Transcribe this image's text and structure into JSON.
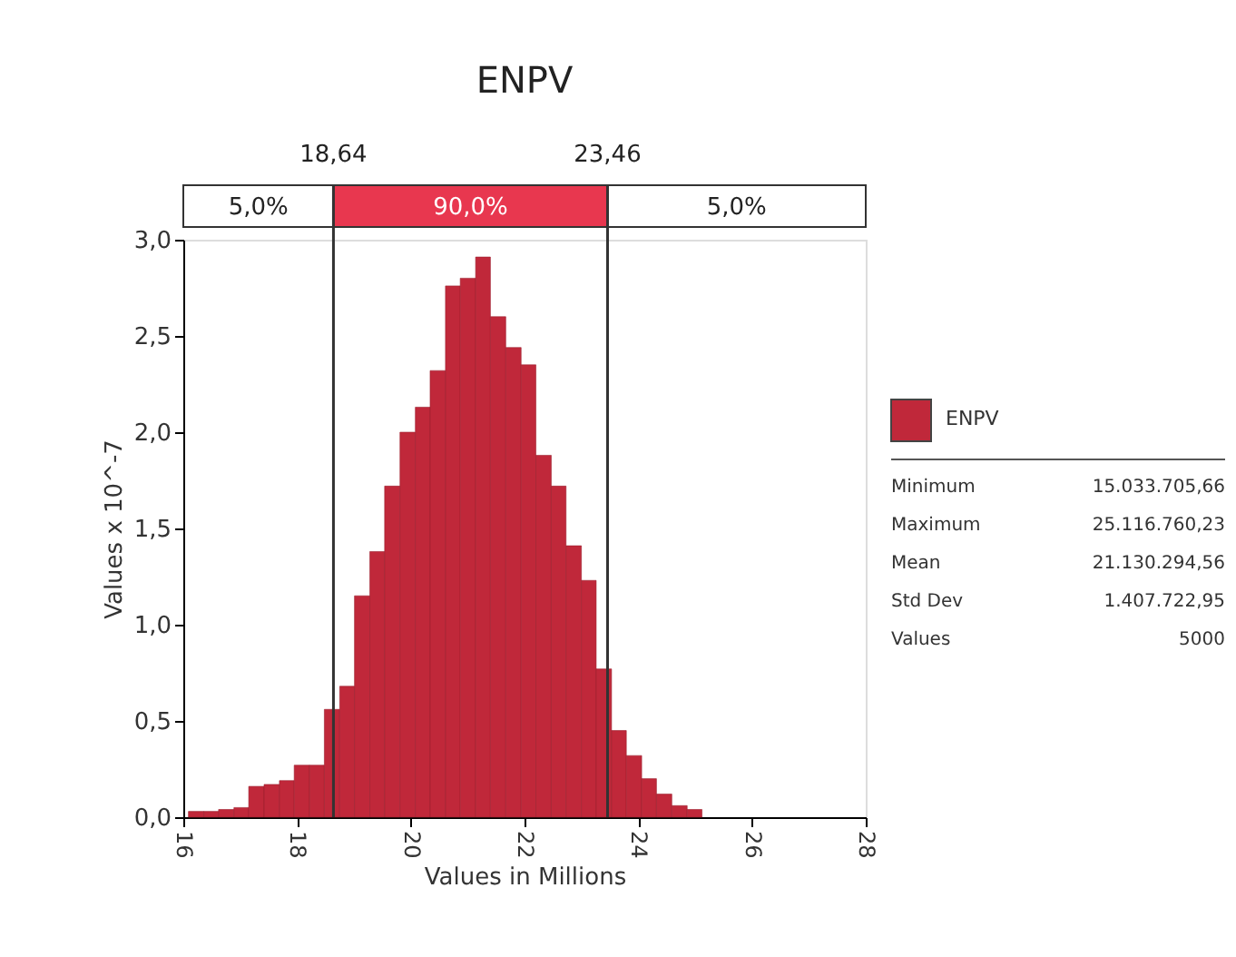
{
  "chart_data": {
    "type": "histogram",
    "title": "ENPV",
    "xlabel": "Values in Millions",
    "ylabel": "Values x 10^-7",
    "bins": [
      16.09,
      16.36,
      16.62,
      16.89,
      17.15,
      17.42,
      17.69,
      17.95,
      18.22,
      18.48,
      18.75,
      19.01,
      19.28,
      19.54,
      19.81,
      20.08,
      20.34,
      20.61,
      20.87,
      21.14,
      21.4,
      21.67,
      21.94,
      22.2,
      22.47,
      22.73,
      23.0,
      23.26,
      23.53,
      23.79,
      24.06,
      24.32,
      24.59,
      24.86,
      25.12
    ],
    "series": [
      {
        "name": "ENPV",
        "color": "#c0283a",
        "values": [
          0.03,
          0.03,
          0.04,
          0.05,
          0.16,
          0.17,
          0.19,
          0.27,
          0.27,
          0.56,
          0.68,
          1.15,
          1.38,
          1.72,
          2.0,
          2.13,
          2.32,
          2.76,
          2.8,
          2.91,
          2.6,
          2.44,
          2.35,
          1.88,
          1.72,
          1.41,
          1.23,
          0.77,
          0.45,
          0.32,
          0.2,
          0.12,
          0.06,
          0.04
        ]
      }
    ],
    "xlim": [
      16,
      28
    ],
    "xticks": [
      16,
      18,
      20,
      22,
      24,
      26,
      28
    ],
    "ylim": [
      0,
      3.0
    ],
    "yticks": [
      {
        "value": 0,
        "label": "0,0"
      },
      {
        "value": 0.5,
        "label": "0,5"
      },
      {
        "value": 1.0,
        "label": "1,0"
      },
      {
        "value": 1.5,
        "label": "1,5"
      },
      {
        "value": 2.0,
        "label": "2,0"
      },
      {
        "value": 2.5,
        "label": "2,5"
      },
      {
        "value": 3.0,
        "label": "3,0"
      }
    ],
    "ref_lines": [
      {
        "axis": "x",
        "value": 18.64,
        "label": "18,64"
      },
      {
        "axis": "x",
        "value": 23.46,
        "label": "23,46"
      }
    ],
    "annotations": [
      "5,0%",
      "90,0%",
      "5,0%",
      "Minimum",
      "15.033.705,66",
      "Maximum",
      "25.116.760,23",
      "Mean",
      "21.130.294,56",
      "Std Dev",
      "1.407.722,95",
      "Values",
      "5000"
    ],
    "legend": "right",
    "grid": false
  }
}
